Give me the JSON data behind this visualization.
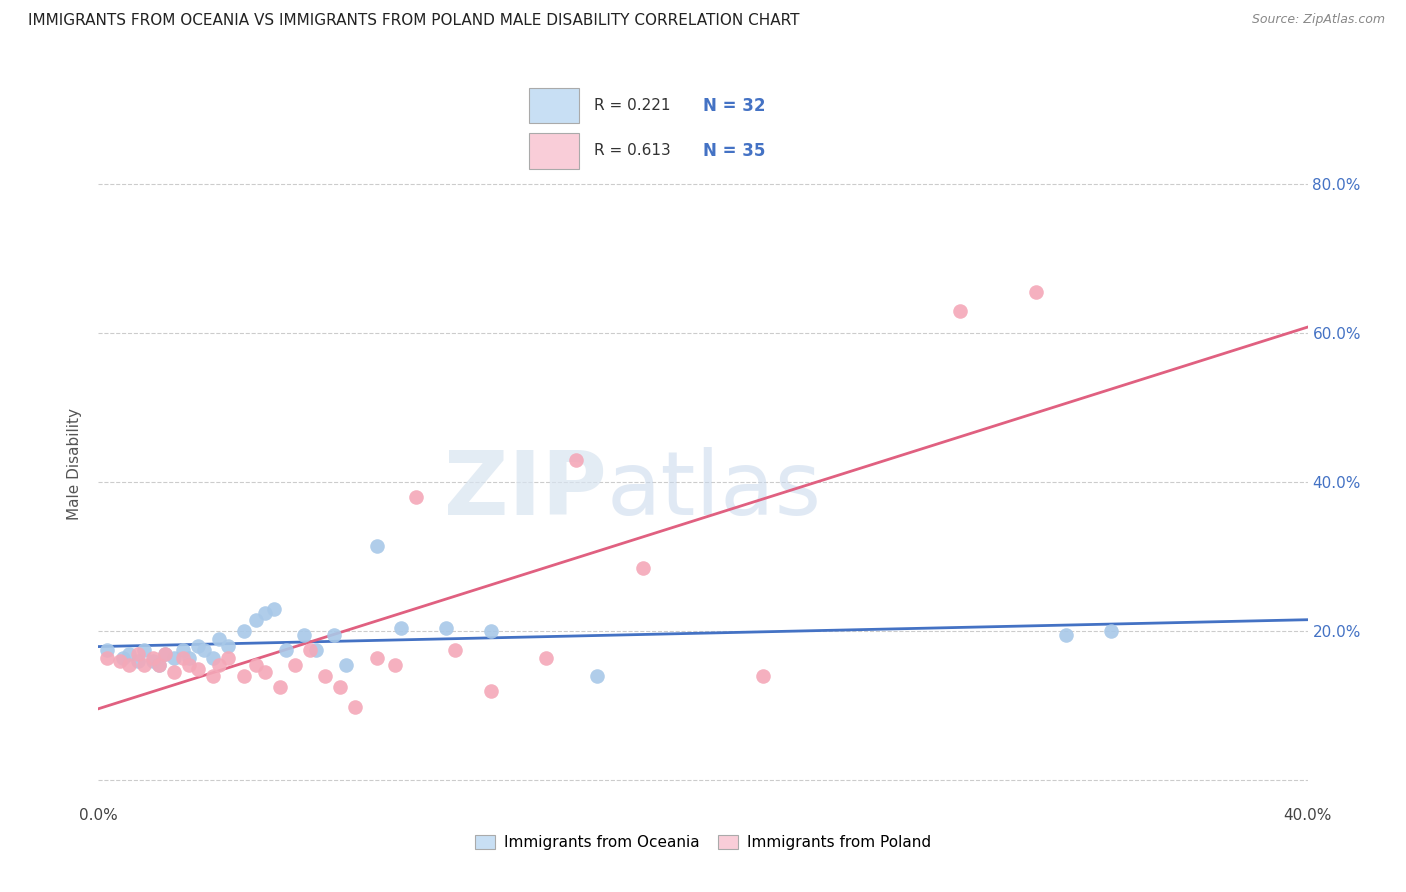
{
  "title": "IMMIGRANTS FROM OCEANIA VS IMMIGRANTS FROM POLAND MALE DISABILITY CORRELATION CHART",
  "source": "Source: ZipAtlas.com",
  "ylabel": "Male Disability",
  "xlim": [
    0.0,
    0.4
  ],
  "ylim": [
    -0.03,
    0.88
  ],
  "ytick_vals": [
    0.0,
    0.2,
    0.4,
    0.6,
    0.8
  ],
  "xtick_vals": [
    0.0,
    0.1,
    0.2,
    0.3,
    0.4
  ],
  "right_ytick_vals": [
    0.2,
    0.4,
    0.6,
    0.8
  ],
  "right_ytick_labels": [
    "20.0%",
    "40.0%",
    "60.0%",
    "80.0%"
  ],
  "oceania_color": "#A8C8E8",
  "poland_color": "#F4A8B8",
  "line_oceania_color": "#4472C4",
  "line_poland_color": "#E06080",
  "legend_fill_oceania": "#C8DFF4",
  "legend_fill_poland": "#F9CDD8",
  "R_oceania": 0.221,
  "N_oceania": 32,
  "R_poland": 0.613,
  "N_poland": 35,
  "oceania_x": [
    0.003,
    0.008,
    0.01,
    0.013,
    0.015,
    0.018,
    0.02,
    0.022,
    0.025,
    0.028,
    0.03,
    0.033,
    0.035,
    0.038,
    0.04,
    0.043,
    0.048,
    0.052,
    0.055,
    0.058,
    0.062,
    0.068,
    0.072,
    0.078,
    0.082,
    0.092,
    0.1,
    0.115,
    0.13,
    0.165,
    0.32,
    0.335
  ],
  "oceania_y": [
    0.175,
    0.165,
    0.17,
    0.16,
    0.175,
    0.16,
    0.155,
    0.17,
    0.165,
    0.175,
    0.165,
    0.18,
    0.175,
    0.165,
    0.19,
    0.18,
    0.2,
    0.215,
    0.225,
    0.23,
    0.175,
    0.195,
    0.175,
    0.195,
    0.155,
    0.315,
    0.205,
    0.205,
    0.2,
    0.14,
    0.195,
    0.2
  ],
  "poland_x": [
    0.003,
    0.007,
    0.01,
    0.013,
    0.015,
    0.018,
    0.02,
    0.022,
    0.025,
    0.028,
    0.03,
    0.033,
    0.038,
    0.04,
    0.043,
    0.048,
    0.052,
    0.055,
    0.06,
    0.065,
    0.07,
    0.075,
    0.08,
    0.085,
    0.092,
    0.098,
    0.105,
    0.118,
    0.13,
    0.148,
    0.158,
    0.18,
    0.22,
    0.285,
    0.31
  ],
  "poland_y": [
    0.165,
    0.16,
    0.155,
    0.17,
    0.155,
    0.165,
    0.155,
    0.17,
    0.145,
    0.165,
    0.155,
    0.15,
    0.14,
    0.155,
    0.165,
    0.14,
    0.155,
    0.145,
    0.125,
    0.155,
    0.175,
    0.14,
    0.125,
    0.098,
    0.165,
    0.155,
    0.38,
    0.175,
    0.12,
    0.165,
    0.43,
    0.285,
    0.14,
    0.63,
    0.655
  ],
  "watermark_zip": "ZIP",
  "watermark_atlas": "atlas",
  "background_color": "#FFFFFF"
}
